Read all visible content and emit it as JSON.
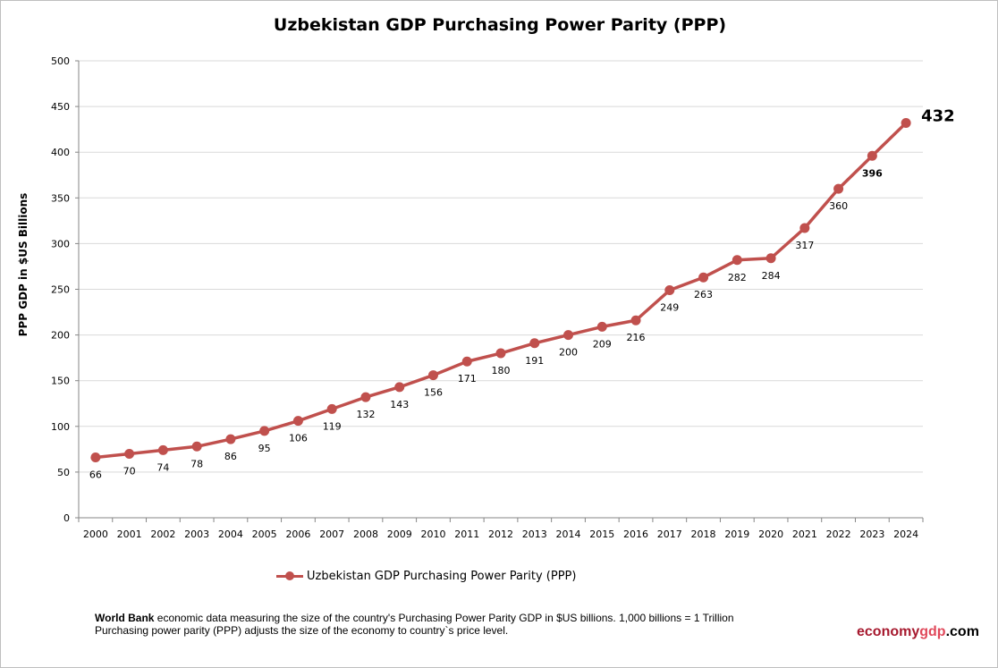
{
  "chart_data": {
    "type": "line",
    "title": "Uzbekistan GDP Purchasing Power Parity (PPP)",
    "ylabel": "PPP GDP in $US Billions",
    "xlabel": "",
    "ylim": [
      0,
      500
    ],
    "yticks": [
      0,
      50,
      100,
      150,
      200,
      250,
      300,
      350,
      400,
      450,
      500
    ],
    "grid": true,
    "legend_placement": "bottom",
    "categories": [
      "2000",
      "2001",
      "2002",
      "2003",
      "2004",
      "2005",
      "2006",
      "2007",
      "2008",
      "2009",
      "2010",
      "2011",
      "2012",
      "2013",
      "2014",
      "2015",
      "2016",
      "2017",
      "2018",
      "2019",
      "2020",
      "2021",
      "2022",
      "2023",
      "2024"
    ],
    "series": [
      {
        "name": "Uzbekistan GDP Purchasing Power Parity (PPP)",
        "color": "#c0504d",
        "values": [
          66,
          70,
          74,
          78,
          86,
          95,
          106,
          119,
          132,
          143,
          156,
          171,
          180,
          191,
          200,
          209,
          216,
          249,
          263,
          282,
          284,
          317,
          360,
          396,
          432
        ]
      }
    ]
  },
  "footer": {
    "source_bold": "World Bank",
    "line1": " economic data  measuring the size of the country's Purchasing Power Parity GDP in $US billions. 1,000 billions = 1 Trillion",
    "line2": "Purchasing power parity (PPP) adjusts the size of the economy to country`s price level."
  },
  "logo": {
    "part1": "economy",
    "part2": "gdp",
    "part3": ".com",
    "colors": [
      "#a6192e",
      "#e0485a",
      "#000000"
    ]
  }
}
